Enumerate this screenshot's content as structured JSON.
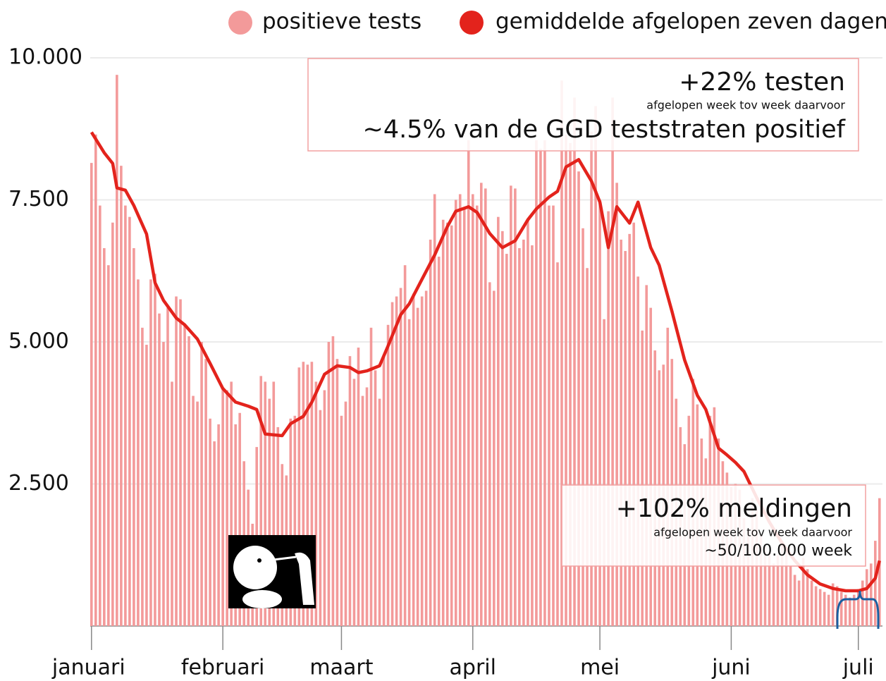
{
  "chart_data": {
    "type": "bar-line",
    "legend_position": "top-right",
    "grid": true,
    "xlim": [
      -0.3,
      186.7
    ],
    "xticks": [
      {
        "value": 0,
        "label": "januari"
      },
      {
        "value": 31,
        "label": "februari"
      },
      {
        "value": 59,
        "label": "maart"
      },
      {
        "value": 90,
        "label": "april"
      },
      {
        "value": 120,
        "label": "mei"
      },
      {
        "value": 151,
        "label": "juni"
      },
      {
        "value": 181,
        "label": "juli"
      }
    ],
    "ylim": [
      0,
      10000
    ],
    "yticks": [
      {
        "value": 2500,
        "label": "2.500"
      },
      {
        "value": 5000,
        "label": "5.000"
      },
      {
        "value": 7500,
        "label": "7.500"
      },
      {
        "value": 10000,
        "label": "10.000"
      }
    ],
    "series": [
      {
        "name": "positieve tests",
        "type": "bar",
        "color": "#f39a9a",
        "x": [
          0,
          1,
          2,
          3,
          4,
          5,
          6,
          7,
          8,
          9,
          10,
          11,
          12,
          13,
          14,
          15,
          16,
          17,
          18,
          19,
          20,
          21,
          22,
          23,
          24,
          25,
          26,
          27,
          28,
          29,
          30,
          31,
          32,
          33,
          34,
          35,
          36,
          37,
          38,
          39,
          40,
          41,
          42,
          43,
          44,
          45,
          46,
          47,
          48,
          49,
          50,
          51,
          52,
          53,
          54,
          55,
          56,
          57,
          58,
          59,
          60,
          61,
          62,
          63,
          64,
          65,
          66,
          67,
          68,
          69,
          70,
          71,
          72,
          73,
          74,
          75,
          76,
          77,
          78,
          79,
          80,
          81,
          82,
          83,
          84,
          85,
          86,
          87,
          88,
          89,
          90,
          91,
          92,
          93,
          94,
          95,
          96,
          97,
          98,
          99,
          100,
          101,
          102,
          103,
          104,
          105,
          106,
          107,
          108,
          109,
          110,
          111,
          112,
          113,
          114,
          115,
          116,
          117,
          118,
          119,
          120,
          121,
          122,
          123,
          124,
          125,
          126,
          127,
          128,
          129,
          130,
          131,
          132,
          133,
          134,
          135,
          136,
          137,
          138,
          139,
          140,
          141,
          142,
          143,
          144,
          145,
          146,
          147,
          148,
          149,
          150,
          151,
          152,
          153,
          154,
          155,
          156,
          157,
          158,
          159,
          160,
          161,
          162,
          163,
          164,
          165,
          166,
          167,
          168,
          169,
          170,
          171,
          172,
          173,
          174,
          175,
          176,
          177,
          178,
          179,
          180,
          181,
          182,
          183,
          184,
          185,
          186
        ],
        "values": [
          8150,
          8650,
          7400,
          6650,
          6350,
          7100,
          9700,
          8100,
          7400,
          7200,
          6650,
          6100,
          5250,
          4950,
          6100,
          6200,
          5500,
          5000,
          5600,
          4300,
          5800,
          5750,
          5300,
          5100,
          4050,
          3950,
          5000,
          4700,
          3650,
          3250,
          3550,
          4200,
          4150,
          4300,
          3550,
          3750,
          2900,
          2400,
          1800,
          3150,
          4400,
          4300,
          4000,
          4300,
          3500,
          2850,
          2650,
          3650,
          3700,
          4550,
          4650,
          4600,
          4650,
          4300,
          3800,
          4150,
          5000,
          5100,
          4700,
          3700,
          3950,
          4750,
          4350,
          4900,
          4050,
          4200,
          5250,
          4500,
          4000,
          4750,
          5300,
          5700,
          5800,
          5950,
          6350,
          5400,
          5850,
          5600,
          5800,
          5900,
          6800,
          7600,
          6500,
          7150,
          7100,
          7050,
          7500,
          7600,
          7350,
          8550,
          7600,
          7400,
          7800,
          7700,
          6050,
          5900,
          7200,
          6950,
          6550,
          7750,
          7700,
          6650,
          6800,
          7150,
          6700,
          8550,
          8400,
          8550,
          7400,
          7400,
          6400,
          9600,
          8650,
          8500,
          9300,
          8000,
          7000,
          6300,
          8700,
          9150,
          7500,
          5400,
          7300,
          9300,
          7800,
          6800,
          6600,
          6900,
          7100,
          6150,
          5200,
          6000,
          5600,
          4850,
          4500,
          4600,
          5250,
          4700,
          4000,
          3500,
          3200,
          3700,
          4350,
          3900,
          3300,
          2950,
          3700,
          3850,
          3300,
          2900,
          2700,
          2450,
          2500,
          2400,
          1900,
          1700,
          2250,
          2050,
          1600,
          1400,
          1300,
          1100,
          1250,
          1500,
          1300,
          1050,
          900,
          800,
          1200,
          1000,
          800,
          700,
          650,
          600,
          550,
          750,
          700,
          600,
          550,
          500,
          550,
          650,
          800,
          1000,
          1100,
          1500,
          2250
        ]
      },
      {
        "name": "gemiddelde afgelopen zeven dagen",
        "type": "line",
        "color": "#e3231c",
        "x": [
          0,
          3,
          5,
          6,
          8,
          10,
          13,
          15,
          17,
          20,
          22,
          25,
          28,
          31,
          34,
          37,
          39,
          41,
          45,
          47,
          50,
          52,
          55,
          58,
          61,
          63,
          65,
          68,
          70,
          73,
          75,
          78,
          81,
          84,
          86,
          89,
          91,
          94,
          97,
          100,
          103,
          105,
          108,
          110,
          112,
          115,
          118,
          120,
          122,
          124,
          127,
          129,
          132,
          134,
          137,
          140,
          143,
          145,
          148,
          150,
          152,
          154,
          157,
          160,
          163,
          166,
          169,
          172,
          175,
          178,
          181,
          183,
          185,
          186
        ],
        "values": [
          8690,
          8330,
          8140,
          7710,
          7670,
          7400,
          6900,
          6040,
          5730,
          5420,
          5300,
          5050,
          4620,
          4180,
          3940,
          3870,
          3810,
          3380,
          3350,
          3560,
          3690,
          3940,
          4430,
          4580,
          4550,
          4460,
          4490,
          4580,
          4930,
          5480,
          5670,
          6100,
          6530,
          7030,
          7300,
          7380,
          7280,
          6910,
          6660,
          6780,
          7150,
          7340,
          7550,
          7650,
          8080,
          8210,
          7830,
          7460,
          6660,
          7380,
          7090,
          7460,
          6660,
          6350,
          5540,
          4680,
          4060,
          3810,
          3130,
          3010,
          2880,
          2720,
          2260,
          1830,
          1460,
          1150,
          900,
          740,
          660,
          620,
          620,
          660,
          840,
          1150
        ]
      }
    ],
    "annotations": [
      {
        "title": "+22% testen",
        "subtitle": "afgelopen week tov week daarvoor",
        "text": "~4.5% van de GGD teststraten positief"
      },
      {
        "title": "+102% meldingen",
        "subtitle": "afgelopen week tov week daarvoor",
        "text": "~50/100.000 week"
      }
    ]
  }
}
